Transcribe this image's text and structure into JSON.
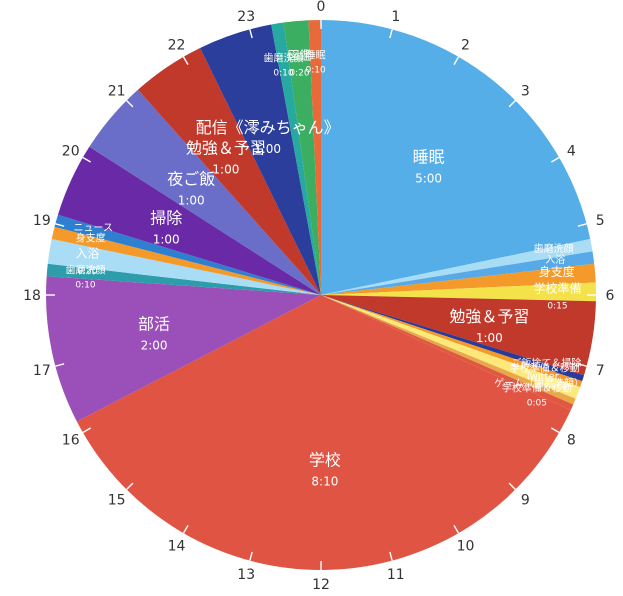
{
  "chart_data": {
    "type": "pie",
    "title": "",
    "clock_hours": [
      "0",
      "1",
      "2",
      "3",
      "4",
      "5",
      "6",
      "7",
      "8",
      "9",
      "10",
      "11",
      "12",
      "13",
      "14",
      "15",
      "16",
      "17",
      "18",
      "19",
      "20",
      "21",
      "22",
      "23"
    ],
    "slices": [
      {
        "label": "睡眠",
        "duration": "5:00",
        "minutes": 300,
        "color": "#55aee8"
      },
      {
        "label": "歯磨洗顔",
        "duration": "",
        "minutes": 10,
        "color": "#a9dcf5"
      },
      {
        "label": "入浴",
        "duration": "",
        "minutes": 10,
        "color": "#58a9e8"
      },
      {
        "label": "身支度",
        "duration": "",
        "minutes": 15,
        "color": "#f39a2a"
      },
      {
        "label": "学校準備",
        "duration": "0:15",
        "minutes": 15,
        "color": "#f4e24a"
      },
      {
        "label": "勉強＆予習",
        "duration": "1:00",
        "minutes": 60,
        "color": "#c0392b"
      },
      {
        "label": "ご飯捨て＆掃除",
        "duration": "",
        "minutes": 5,
        "color": "#2a3a9a"
      },
      {
        "label": "学校準備＆移動",
        "duration": "",
        "minutes": 5,
        "color": "#f39a2a"
      },
      {
        "label": "Twitter",
        "duration": "",
        "minutes": 10,
        "color": "#fde97a"
      },
      {
        "label": "ゲーム（歯磨洗顔）",
        "duration": "",
        "minutes": 5,
        "color": "#e8a84a"
      },
      {
        "label": "学校準備＆移動",
        "duration": "0:05",
        "minutes": 5,
        "color": "#e05840"
      },
      {
        "label": "学校",
        "duration": "8:10",
        "minutes": 490,
        "color": "#e05443"
      },
      {
        "label": "部活",
        "duration": "2:00",
        "minutes": 120,
        "color": "#9b4fb8"
      },
      {
        "label": "歯磨洗顔",
        "duration": "0:10",
        "minutes": 10,
        "color": "#2d9dab"
      },
      {
        "label": "入浴",
        "duration": "0:20",
        "minutes": 20,
        "color": "#a9dcf5"
      },
      {
        "label": "身支度",
        "duration": "",
        "minutes": 10,
        "color": "#f39a2a"
      },
      {
        "label": "ニュース",
        "duration": "",
        "minutes": 10,
        "color": "#2f7fd0"
      },
      {
        "label": "掃除",
        "duration": "1:00",
        "minutes": 60,
        "color": "#6a2aa8"
      },
      {
        "label": "夜ご飯",
        "duration": "1:00",
        "minutes": 60,
        "color": "#6a6ec8"
      },
      {
        "label": "勉強＆予習",
        "duration": "1:00",
        "minutes": 60,
        "color": "#c0392b"
      },
      {
        "label": "配信《澪みちゃん》",
        "duration": "1:00",
        "minutes": 60,
        "color": "#2c3e9c"
      },
      {
        "label": "歯磨洗顔",
        "duration": "0:10",
        "minutes": 10,
        "color": "#27a8a0"
      },
      {
        "label": "図鑑",
        "duration": "0:20",
        "minutes": 20,
        "color": "#3cae62"
      },
      {
        "label": "睡眠",
        "duration": "0:10",
        "minutes": 10,
        "color": "#e86a3a"
      }
    ],
    "legend": "none",
    "grid": false
  }
}
